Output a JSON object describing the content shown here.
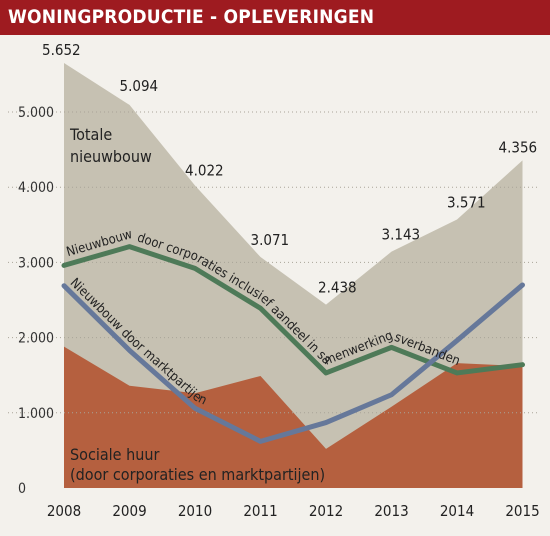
{
  "header": {
    "title": "WONINGPRODUCTIE - OPLEVERINGEN"
  },
  "chart_data": {
    "type": "area",
    "title": "WONINGPRODUCTIE - OPLEVERINGEN",
    "xlabel": "",
    "ylabel": "",
    "x": [
      "2008",
      "2009",
      "2010",
      "2011",
      "2012",
      "2013",
      "2014",
      "2015"
    ],
    "ylim": [
      0,
      6000
    ],
    "yticks": [
      "0",
      "1.000",
      "2.000",
      "3.000",
      "4.000",
      "5.000"
    ],
    "grid": true,
    "series": [
      {
        "name": "Totale nieuwbouw",
        "kind": "area",
        "color": "#c6c1b2",
        "values": [
          5652,
          5094,
          4022,
          3071,
          2438,
          3143,
          3571,
          4356
        ],
        "data_labels": [
          "5.652",
          "5.094",
          "4.022",
          "3.071",
          "2.438",
          "3.143",
          "3.571",
          "4.356"
        ]
      },
      {
        "name": "Sociale huur (door corporaties en marktpartijen)",
        "kind": "area",
        "color": "#b5603f",
        "label_lines": [
          "Sociale huur",
          "(door corporaties en marktpartijen)"
        ],
        "values": [
          1880,
          1360,
          1260,
          1490,
          520,
          1080,
          1660,
          1620
        ]
      },
      {
        "name": "Nieuwbouw door corporaties inclusief aandeel in samenwerkingsverbanden",
        "kind": "line",
        "color": "#4e7a58",
        "values": [
          2960,
          3210,
          2920,
          2390,
          1530,
          1870,
          1530,
          1640
        ]
      },
      {
        "name": "Nieuwbouw door marktpartijen",
        "kind": "line",
        "color": "#66789a",
        "values": [
          2690,
          1830,
          1060,
          620,
          870,
          1240,
          1960,
          2700
        ]
      }
    ]
  }
}
